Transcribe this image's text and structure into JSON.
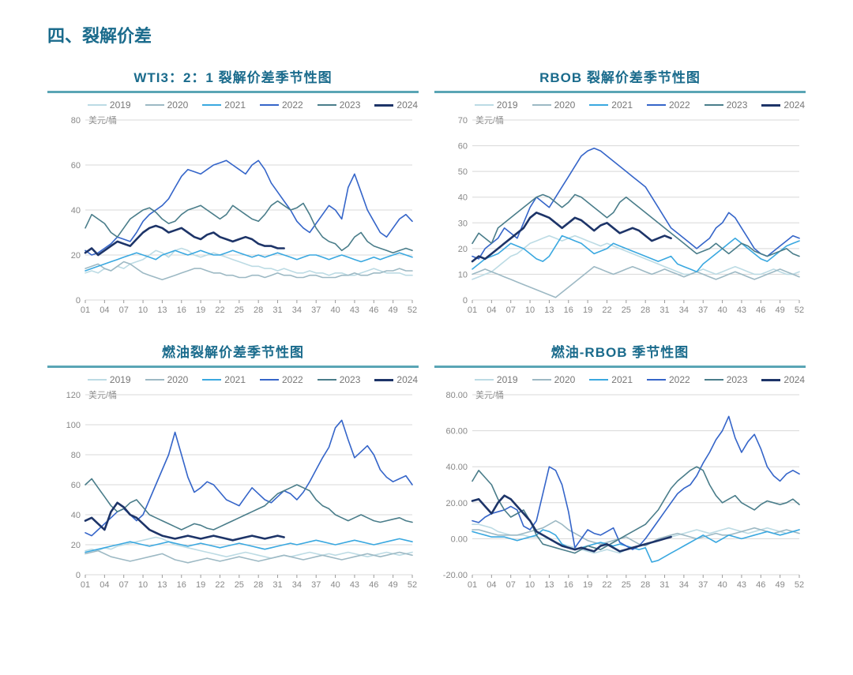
{
  "section_title": "四、裂解价差",
  "colors": {
    "y2019": "#bcdbe4",
    "y2020": "#9db9c4",
    "y2021": "#3aa8e0",
    "y2022": "#3565c9",
    "y2023": "#4a7d8a",
    "y2024": "#1d3468",
    "grid": "#d8d8d8",
    "axis": "#999999",
    "title": "#1a6b8c",
    "divider": "#5aa5b5"
  },
  "legend_labels": {
    "y2019": "2019",
    "y2020": "2020",
    "y2021": "2021",
    "y2022": "2022",
    "y2023": "2023",
    "y2024": "2024"
  },
  "x_ticks": [
    "01",
    "04",
    "07",
    "10",
    "13",
    "16",
    "19",
    "22",
    "25",
    "28",
    "31",
    "34",
    "37",
    "40",
    "43",
    "46",
    "49",
    "52"
  ],
  "charts": [
    {
      "id": "wti",
      "title": "WTI3：2：1 裂解价差季节性图",
      "unit": "美元/桶",
      "ylim": [
        0,
        80
      ],
      "ytick_step": 20,
      "ytick_labels": [
        "0",
        "20",
        "40",
        "60",
        "80"
      ],
      "series": {
        "y2019": [
          12,
          13,
          12,
          14,
          13,
          15,
          14,
          16,
          17,
          18,
          20,
          22,
          21,
          19,
          22,
          23,
          22,
          20,
          19,
          20,
          21,
          20,
          19,
          18,
          17,
          16,
          15,
          15,
          14,
          14,
          13,
          14,
          13,
          12,
          12,
          13,
          12,
          12,
          11,
          12,
          12,
          11,
          11,
          12,
          13,
          14,
          13,
          12,
          12,
          12,
          11,
          11
        ],
        "y2020": [
          14,
          15,
          16,
          14,
          13,
          15,
          17,
          16,
          14,
          12,
          11,
          10,
          9,
          10,
          11,
          12,
          13,
          14,
          14,
          13,
          12,
          12,
          11,
          11,
          10,
          10,
          11,
          11,
          10,
          11,
          12,
          11,
          11,
          10,
          10,
          11,
          11,
          10,
          10,
          10,
          11,
          11,
          12,
          11,
          11,
          12,
          12,
          13,
          13,
          14,
          13,
          13
        ],
        "y2021": [
          13,
          14,
          15,
          16,
          17,
          18,
          19,
          20,
          21,
          20,
          19,
          18,
          20,
          21,
          22,
          21,
          20,
          21,
          22,
          21,
          20,
          20,
          21,
          22,
          21,
          20,
          19,
          20,
          19,
          20,
          21,
          20,
          19,
          18,
          19,
          20,
          20,
          19,
          18,
          19,
          20,
          19,
          18,
          17,
          18,
          19,
          18,
          19,
          20,
          21,
          20,
          19
        ],
        "y2022": [
          22,
          20,
          21,
          23,
          25,
          28,
          27,
          26,
          30,
          35,
          38,
          40,
          42,
          45,
          50,
          55,
          58,
          57,
          56,
          58,
          60,
          61,
          62,
          60,
          58,
          56,
          60,
          62,
          58,
          52,
          48,
          44,
          40,
          35,
          32,
          30,
          34,
          38,
          42,
          40,
          36,
          50,
          56,
          48,
          40,
          35,
          30,
          28,
          32,
          36,
          38,
          35
        ],
        "y2023": [
          32,
          38,
          36,
          34,
          30,
          28,
          32,
          36,
          38,
          40,
          41,
          39,
          36,
          34,
          35,
          38,
          40,
          41,
          42,
          40,
          38,
          36,
          38,
          42,
          40,
          38,
          36,
          35,
          38,
          42,
          44,
          42,
          40,
          41,
          43,
          38,
          32,
          28,
          26,
          25,
          22,
          24,
          28,
          30,
          26,
          24,
          23,
          22,
          21,
          22,
          23,
          22
        ],
        "y2024": [
          21,
          23,
          20,
          22,
          24,
          26,
          25,
          24,
          27,
          30,
          32,
          33,
          32,
          30,
          31,
          32,
          30,
          28,
          27,
          29,
          30,
          28,
          27,
          26,
          27,
          28,
          27,
          25,
          24,
          24,
          23,
          23
        ]
      }
    },
    {
      "id": "rbob",
      "title": "RBOB 裂解价差季节性图",
      "unit": "美元/桶",
      "ylim": [
        0,
        70
      ],
      "ytick_step": 10,
      "ytick_labels": [
        "0",
        "10",
        "20",
        "30",
        "40",
        "50",
        "60",
        "70"
      ],
      "series": {
        "y2019": [
          8,
          9,
          10,
          11,
          13,
          15,
          17,
          18,
          20,
          22,
          23,
          24,
          25,
          24,
          23,
          24,
          25,
          24,
          23,
          22,
          21,
          22,
          21,
          20,
          19,
          18,
          17,
          16,
          15,
          14,
          13,
          12,
          11,
          10,
          10,
          11,
          12,
          11,
          10,
          11,
          12,
          13,
          12,
          11,
          10,
          10,
          11,
          12,
          11,
          10,
          10,
          11
        ],
        "y2020": [
          10,
          11,
          12,
          11,
          10,
          9,
          8,
          7,
          6,
          5,
          4,
          3,
          2,
          1,
          3,
          5,
          7,
          9,
          11,
          13,
          12,
          11,
          10,
          11,
          12,
          13,
          12,
          11,
          10,
          11,
          12,
          11,
          10,
          9,
          10,
          11,
          10,
          9,
          8,
          9,
          10,
          11,
          10,
          9,
          8,
          9,
          10,
          11,
          12,
          11,
          10,
          9
        ],
        "y2021": [
          12,
          14,
          16,
          17,
          18,
          20,
          22,
          21,
          20,
          18,
          16,
          15,
          17,
          21,
          25,
          24,
          23,
          22,
          20,
          18,
          19,
          20,
          22,
          21,
          20,
          19,
          18,
          17,
          16,
          15,
          16,
          17,
          14,
          13,
          12,
          11,
          14,
          16,
          18,
          20,
          22,
          24,
          22,
          20,
          18,
          16,
          15,
          17,
          19,
          21,
          22,
          23
        ],
        "y2022": [
          17,
          16,
          20,
          22,
          24,
          28,
          26,
          24,
          30,
          36,
          40,
          38,
          36,
          40,
          44,
          48,
          52,
          56,
          58,
          59,
          58,
          56,
          54,
          52,
          50,
          48,
          46,
          44,
          40,
          36,
          32,
          28,
          26,
          24,
          22,
          20,
          22,
          24,
          28,
          30,
          34,
          32,
          28,
          24,
          20,
          18,
          17,
          19,
          21,
          23,
          25,
          24
        ],
        "y2023": [
          22,
          26,
          24,
          22,
          28,
          30,
          32,
          34,
          36,
          38,
          40,
          41,
          40,
          38,
          36,
          38,
          41,
          40,
          38,
          36,
          34,
          32,
          34,
          38,
          40,
          38,
          36,
          34,
          32,
          30,
          28,
          26,
          24,
          22,
          20,
          18,
          19,
          20,
          22,
          20,
          18,
          20,
          22,
          21,
          19,
          18,
          17,
          18,
          19,
          20,
          18,
          17
        ],
        "y2024": [
          15,
          17,
          16,
          18,
          20,
          22,
          24,
          26,
          28,
          32,
          34,
          33,
          32,
          30,
          28,
          30,
          32,
          31,
          29,
          27,
          29,
          30,
          28,
          26,
          27,
          28,
          27,
          25,
          23,
          24,
          25,
          24
        ]
      }
    },
    {
      "id": "ho",
      "title": "燃油裂解价差季节性图",
      "unit": "美元/桶",
      "ylim": [
        0,
        120
      ],
      "ytick_step": 20,
      "ytick_labels": [
        "0",
        "20",
        "40",
        "60",
        "80",
        "100",
        "120"
      ],
      "series": {
        "y2019": [
          16,
          17,
          16,
          18,
          17,
          19,
          20,
          21,
          22,
          23,
          24,
          25,
          24,
          22,
          20,
          19,
          18,
          17,
          16,
          15,
          14,
          13,
          12,
          13,
          14,
          15,
          14,
          13,
          12,
          11,
          12,
          13,
          12,
          13,
          14,
          15,
          14,
          13,
          14,
          13,
          14,
          15,
          14,
          13,
          12,
          13,
          14,
          15,
          14,
          13,
          14,
          15
        ],
        "y2020": [
          14,
          15,
          16,
          14,
          12,
          11,
          10,
          9,
          10,
          11,
          12,
          13,
          14,
          12,
          10,
          9,
          8,
          9,
          10,
          11,
          10,
          9,
          10,
          11,
          12,
          11,
          10,
          9,
          10,
          11,
          12,
          13,
          12,
          11,
          10,
          11,
          12,
          13,
          12,
          11,
          10,
          11,
          12,
          13,
          14,
          13,
          12,
          13,
          14,
          15,
          14,
          13
        ],
        "y2021": [
          15,
          16,
          17,
          18,
          19,
          20,
          21,
          22,
          21,
          20,
          19,
          20,
          21,
          22,
          21,
          20,
          19,
          20,
          21,
          20,
          19,
          18,
          19,
          20,
          21,
          20,
          19,
          18,
          17,
          18,
          19,
          20,
          21,
          20,
          21,
          22,
          23,
          22,
          21,
          20,
          21,
          22,
          23,
          22,
          21,
          20,
          21,
          22,
          23,
          24,
          23,
          22
        ],
        "y2022": [
          28,
          26,
          30,
          34,
          38,
          42,
          44,
          40,
          36,
          40,
          50,
          60,
          70,
          80,
          95,
          80,
          65,
          55,
          58,
          62,
          60,
          55,
          50,
          48,
          46,
          52,
          58,
          54,
          50,
          48,
          52,
          56,
          54,
          50,
          55,
          62,
          70,
          78,
          85,
          98,
          103,
          90,
          78,
          82,
          86,
          80,
          70,
          65,
          62,
          64,
          66,
          60
        ],
        "y2023": [
          60,
          64,
          58,
          52,
          46,
          42,
          44,
          48,
          50,
          45,
          40,
          38,
          36,
          34,
          32,
          30,
          32,
          34,
          33,
          31,
          30,
          32,
          34,
          36,
          38,
          40,
          42,
          44,
          46,
          50,
          54,
          56,
          58,
          60,
          58,
          56,
          50,
          46,
          44,
          40,
          38,
          36,
          38,
          40,
          38,
          36,
          35,
          36,
          37,
          38,
          36,
          35
        ],
        "y2024": [
          36,
          38,
          34,
          30,
          42,
          48,
          45,
          40,
          38,
          34,
          30,
          28,
          26,
          25,
          24,
          25,
          26,
          25,
          24,
          25,
          26,
          25,
          24,
          23,
          24,
          25,
          26,
          25,
          24,
          25,
          26,
          25
        ]
      }
    },
    {
      "id": "ho_rbob",
      "title": "燃油-RBOB 季节性图",
      "unit": "美元/桶",
      "ylim": [
        -20,
        80
      ],
      "ytick_step": 20,
      "ytick_labels": [
        "-20.00",
        "0.00",
        "20.00",
        "40.00",
        "60.00",
        "80.00"
      ],
      "series": {
        "y2019": [
          8,
          8,
          7,
          6,
          4,
          3,
          2,
          2,
          2,
          1,
          1,
          0,
          0,
          -2,
          -3,
          -4,
          -5,
          -6,
          -7,
          -8,
          -7,
          -6,
          -7,
          -8,
          -6,
          -5,
          -4,
          -3,
          -2,
          -1,
          0,
          1,
          2,
          3,
          4,
          5,
          4,
          3,
          4,
          5,
          6,
          5,
          4,
          3,
          4,
          5,
          6,
          5,
          4,
          3,
          4,
          5
        ],
        "y2020": [
          5,
          5,
          4,
          3,
          2,
          2,
          2,
          2,
          3,
          4,
          5,
          6,
          8,
          10,
          8,
          5,
          3,
          1,
          -1,
          -2,
          -3,
          -2,
          -1,
          0,
          1,
          -1,
          -3,
          -4,
          -2,
          0,
          1,
          2,
          3,
          2,
          1,
          0,
          1,
          2,
          3,
          2,
          2,
          3,
          4,
          5,
          6,
          5,
          4,
          3,
          4,
          5,
          4,
          3
        ],
        "y2021": [
          4,
          3,
          2,
          1,
          1,
          1,
          0,
          -1,
          0,
          1,
          2,
          5,
          4,
          2,
          -3,
          -5,
          -6,
          -5,
          -4,
          -3,
          -2,
          -3,
          -4,
          -3,
          -4,
          -5,
          -6,
          -5,
          -13,
          -12,
          -10,
          -8,
          -6,
          -4,
          -2,
          0,
          2,
          0,
          -2,
          0,
          2,
          1,
          0,
          1,
          2,
          3,
          4,
          3,
          2,
          3,
          4,
          5
        ],
        "y2022": [
          10,
          9,
          12,
          14,
          15,
          16,
          18,
          16,
          7,
          5,
          10,
          25,
          40,
          38,
          30,
          15,
          -5,
          0,
          5,
          3,
          2,
          4,
          6,
          -2,
          -4,
          -6,
          -4,
          0,
          5,
          10,
          15,
          20,
          25,
          28,
          30,
          35,
          42,
          48,
          55,
          60,
          68,
          56,
          48,
          54,
          58,
          50,
          40,
          35,
          32,
          36,
          38,
          36
        ],
        "y2023": [
          32,
          38,
          34,
          30,
          22,
          16,
          12,
          14,
          16,
          10,
          2,
          -3,
          -4,
          -5,
          -6,
          -7,
          -8,
          -6,
          -4,
          -5,
          -6,
          -4,
          -2,
          0,
          2,
          4,
          6,
          8,
          12,
          16,
          22,
          28,
          32,
          35,
          38,
          40,
          38,
          30,
          24,
          20,
          22,
          24,
          20,
          18,
          16,
          19,
          21,
          20,
          19,
          20,
          22,
          19
        ],
        "y2024": [
          21,
          22,
          18,
          14,
          20,
          24,
          22,
          18,
          14,
          10,
          4,
          2,
          0,
          -2,
          -4,
          -5,
          -6,
          -5,
          -6,
          -7,
          -4,
          -3,
          -5,
          -7,
          -6,
          -5,
          -4,
          -3,
          -2,
          -1,
          0,
          1
        ]
      }
    }
  ]
}
